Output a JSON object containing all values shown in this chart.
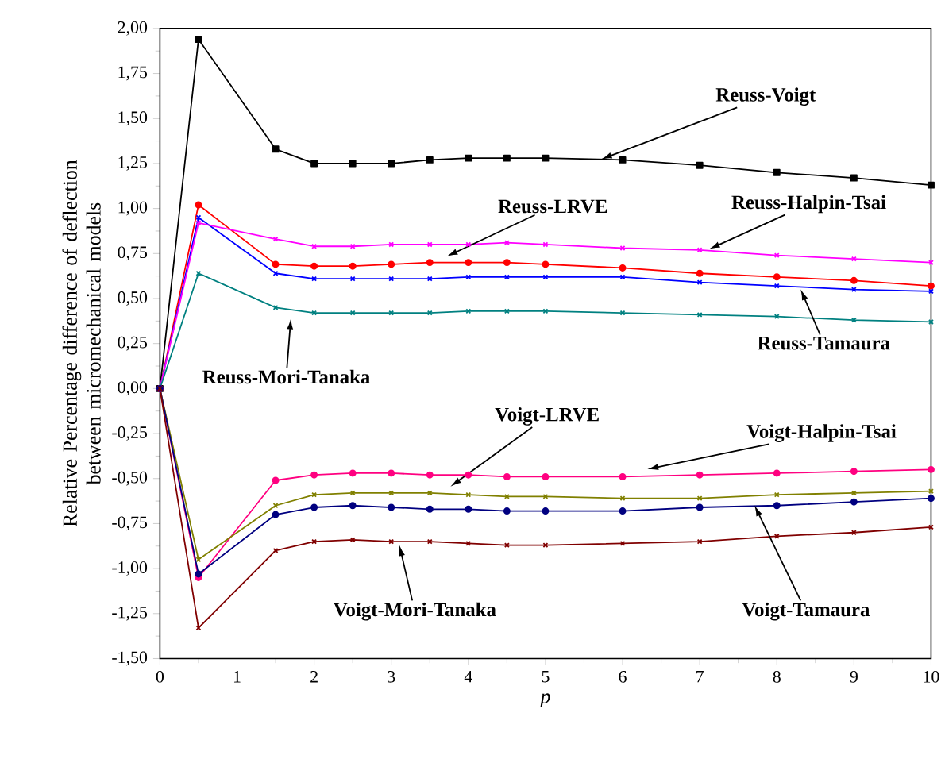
{
  "chart_data": {
    "type": "line",
    "xlabel": "p",
    "ylabel": "Relative Percentage difference of deflection between micromechanical models",
    "x": [
      0,
      0.5,
      1.5,
      2,
      2.5,
      3,
      3.5,
      4,
      4.5,
      5,
      6,
      7,
      8,
      9,
      10
    ],
    "xlim": [
      0,
      10
    ],
    "xticks": [
      0,
      1,
      2,
      3,
      4,
      5,
      6,
      7,
      8,
      9,
      10
    ],
    "ylim": [
      -1.5,
      2.0
    ],
    "yticks": [
      {
        "value": -1.5,
        "label": "-1,50"
      },
      {
        "value": -1.25,
        "label": "-1,25"
      },
      {
        "value": -1.0,
        "label": "-1,00"
      },
      {
        "value": -0.75,
        "label": "-0,75"
      },
      {
        "value": -0.5,
        "label": "-0,50"
      },
      {
        "value": -0.25,
        "label": "-0,25"
      },
      {
        "value": 0,
        "label": "0,00"
      },
      {
        "value": 0.25,
        "label": "0,25"
      },
      {
        "value": 0.5,
        "label": "0,50"
      },
      {
        "value": 0.75,
        "label": "0,75"
      },
      {
        "value": 1.0,
        "label": "1,00"
      },
      {
        "value": 1.25,
        "label": "1,25"
      },
      {
        "value": 1.5,
        "label": "1,50"
      },
      {
        "value": 1.75,
        "label": "1,75"
      },
      {
        "value": 2.0,
        "label": "2,00"
      }
    ],
    "series": [
      {
        "color": "#000000",
        "marker": "square",
        "values": [
          0,
          1.94,
          1.33,
          1.25,
          1.25,
          1.25,
          1.27,
          1.28,
          1.28,
          1.28,
          1.27,
          1.24,
          1.2,
          1.17,
          1.13
        ]
      },
      {
        "color": "#ff0000",
        "marker": "circle",
        "values": [
          0,
          1.02,
          0.69,
          0.68,
          0.68,
          0.69,
          0.7,
          0.7,
          0.7,
          0.69,
          0.67,
          0.64,
          0.62,
          0.6,
          0.57
        ]
      },
      {
        "color": "#0000ff",
        "marker": "cross",
        "values": [
          0,
          0.95,
          0.64,
          0.61,
          0.61,
          0.61,
          0.61,
          0.62,
          0.62,
          0.62,
          0.62,
          0.59,
          0.57,
          0.55,
          0.54
        ]
      },
      {
        "color": "#ff00ff",
        "marker": "cross",
        "values": [
          0,
          0.92,
          0.83,
          0.79,
          0.79,
          0.8,
          0.8,
          0.8,
          0.81,
          0.8,
          0.78,
          0.77,
          0.74,
          0.72,
          0.7
        ]
      },
      {
        "color": "#008080",
        "marker": "cross",
        "values": [
          0,
          0.64,
          0.45,
          0.42,
          0.42,
          0.42,
          0.42,
          0.43,
          0.43,
          0.43,
          0.42,
          0.41,
          0.4,
          0.38,
          0.37
        ]
      },
      {
        "color": "#ff0080",
        "marker": "circle",
        "values": [
          0,
          -1.05,
          -0.51,
          -0.48,
          -0.47,
          -0.47,
          -0.48,
          -0.48,
          -0.49,
          -0.49,
          -0.49,
          -0.48,
          -0.47,
          -0.46,
          -0.45
        ]
      },
      {
        "color": "#808000",
        "marker": "cross",
        "values": [
          0,
          -0.95,
          -0.65,
          -0.59,
          -0.58,
          -0.58,
          -0.58,
          -0.59,
          -0.6,
          -0.6,
          -0.61,
          -0.61,
          -0.59,
          -0.58,
          -0.57
        ]
      },
      {
        "color": "#000080",
        "marker": "circle",
        "values": [
          0,
          -1.03,
          -0.7,
          -0.66,
          -0.65,
          -0.66,
          -0.67,
          -0.67,
          -0.68,
          -0.68,
          -0.68,
          -0.66,
          -0.65,
          -0.63,
          -0.61
        ]
      },
      {
        "color": "#800000",
        "marker": "cross",
        "values": [
          0,
          -1.33,
          -0.9,
          -0.85,
          -0.84,
          -0.85,
          -0.85,
          -0.86,
          -0.87,
          -0.87,
          -0.86,
          -0.85,
          -0.82,
          -0.8,
          -0.77
        ]
      }
    ],
    "annotations": [
      {
        "text": "Reuss-Voigt",
        "x": 5.7,
        "y": 1.27
      },
      {
        "text": "Reuss-LRVE",
        "x": 3.7,
        "y": 0.73
      },
      {
        "text": "Reuss-Halpin-Tsai",
        "x": 7.1,
        "y": 0.77
      },
      {
        "text": "Reuss-Tamaura",
        "x": 8.3,
        "y": 0.56
      },
      {
        "text": "Reuss-Mori-Tanaka",
        "x": 1.7,
        "y": 0.4
      },
      {
        "text": "Voigt-LRVE",
        "x": 3.75,
        "y": -0.55
      },
      {
        "text": "Voigt-Halpin-Tsai",
        "x": 6.3,
        "y": -0.45
      },
      {
        "text": "Voigt-Tamaura",
        "x": 7.7,
        "y": -0.64
      },
      {
        "text": "Voigt-Mori-Tanaka",
        "x": 3.1,
        "y": -0.86
      }
    ]
  }
}
